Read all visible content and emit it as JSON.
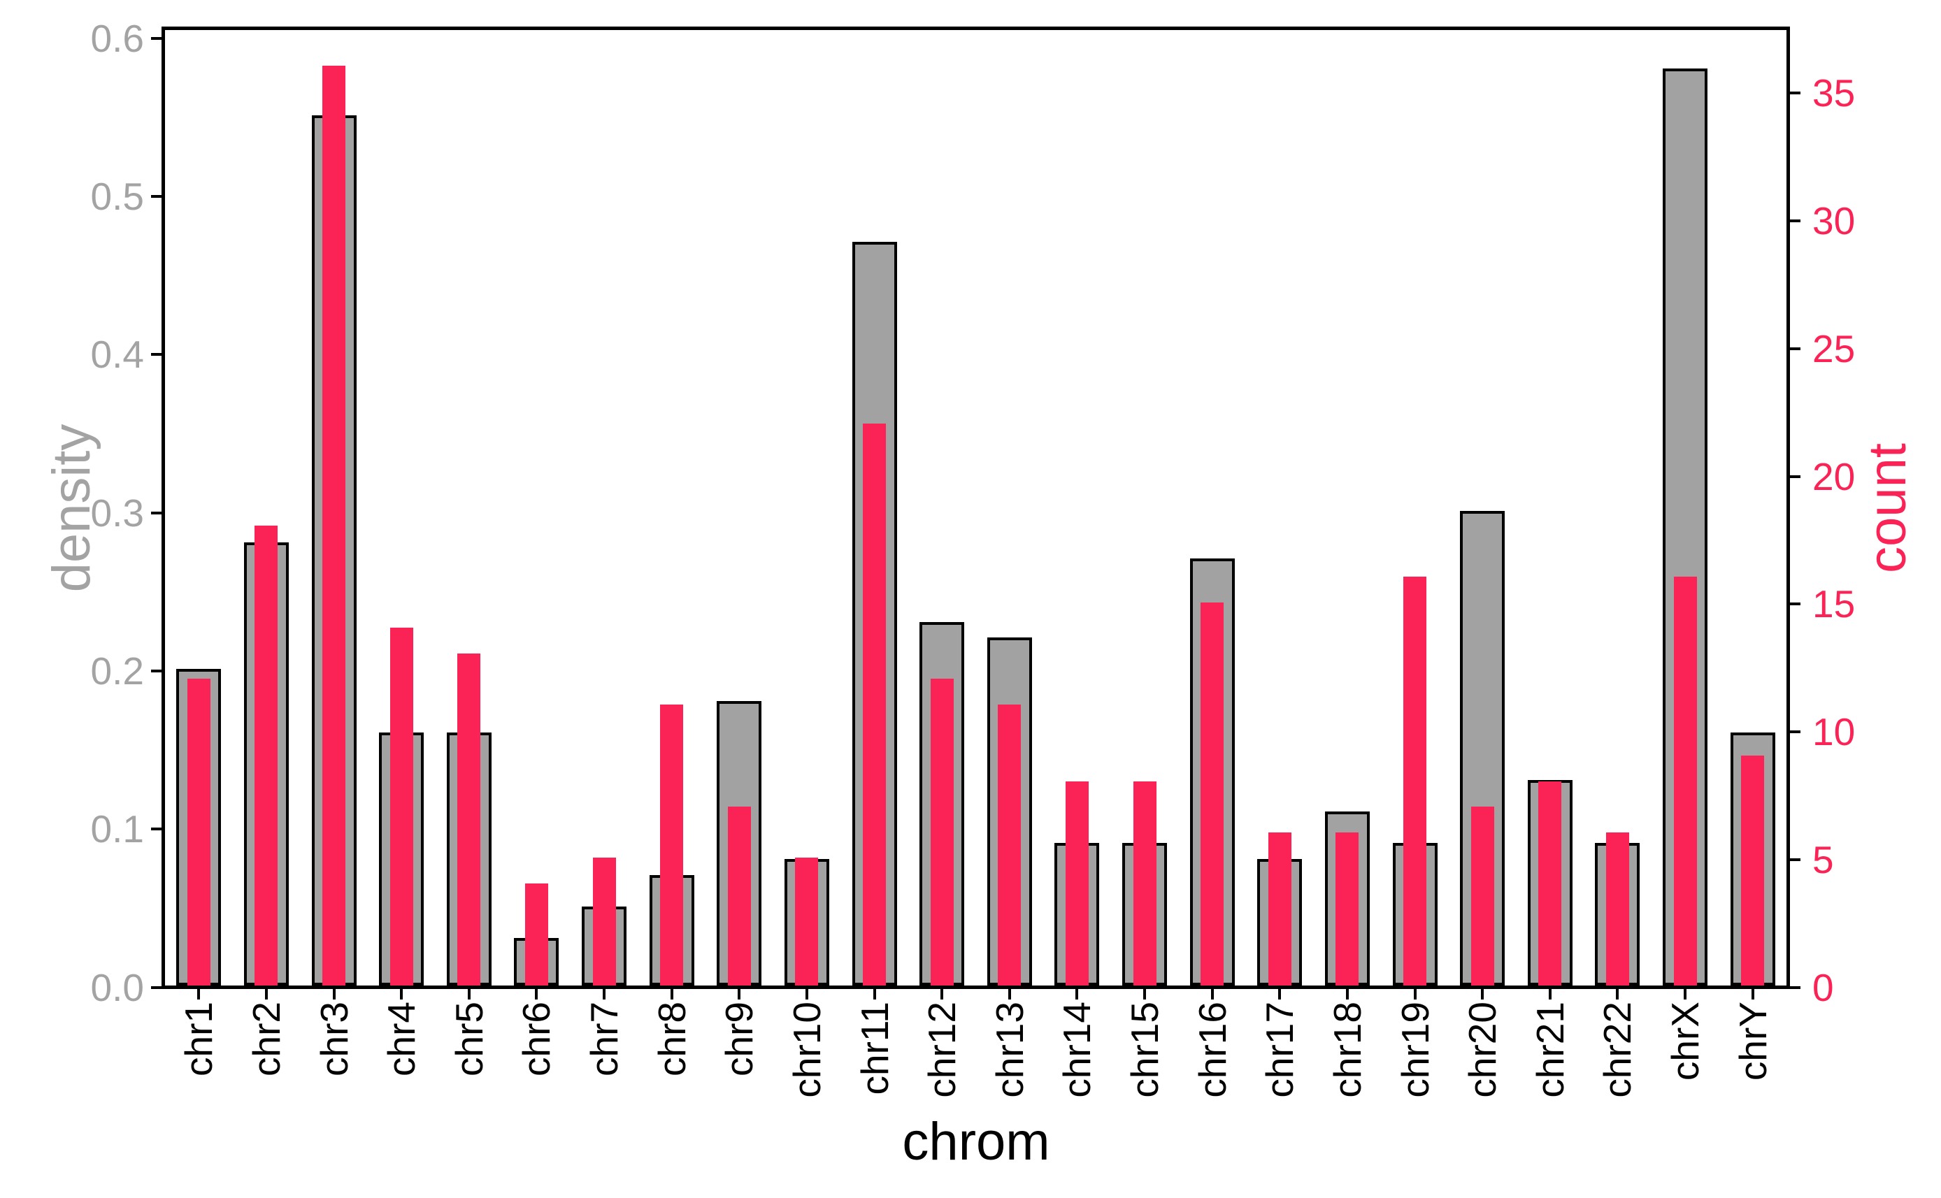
{
  "chart_data": {
    "type": "bar",
    "title": "",
    "xlabel": "chrom",
    "ylabel_left": "density",
    "ylabel_right": "count",
    "categories": [
      "chr1",
      "chr2",
      "chr3",
      "chr4",
      "chr5",
      "chr6",
      "chr7",
      "chr8",
      "chr9",
      "chr10",
      "chr11",
      "chr12",
      "chr13",
      "chr14",
      "chr15",
      "chr16",
      "chr17",
      "chr18",
      "chr19",
      "chr20",
      "chr21",
      "chr22",
      "chrX",
      "chrY"
    ],
    "series": [
      {
        "name": "density",
        "axis": "left",
        "style": "wide-gray-bar",
        "color": "#a2a2a2",
        "values": [
          0.2,
          0.28,
          0.55,
          0.16,
          0.16,
          0.03,
          0.05,
          0.07,
          0.18,
          0.08,
          0.47,
          0.23,
          0.22,
          0.09,
          0.09,
          0.27,
          0.08,
          0.11,
          0.09,
          0.3,
          0.13,
          0.09,
          0.58,
          0.16
        ]
      },
      {
        "name": "count",
        "axis": "right",
        "style": "thin-pink-bar",
        "color": "#fb2355",
        "values": [
          12,
          18,
          36,
          14,
          13,
          4,
          5,
          11,
          7,
          5,
          22,
          12,
          11,
          8,
          8,
          15,
          6,
          6,
          16,
          7,
          8,
          6,
          16,
          9
        ]
      }
    ],
    "left_axis": {
      "tick_labels": [
        "0.0",
        "0.1",
        "0.2",
        "0.3",
        "0.4",
        "0.5",
        "0.6"
      ],
      "tick_values": [
        0.0,
        0.1,
        0.2,
        0.3,
        0.4,
        0.5,
        0.6
      ],
      "ylim": [
        0,
        0.6063
      ]
    },
    "right_axis": {
      "tick_labels": [
        "0",
        "5",
        "10",
        "15",
        "20",
        "25",
        "30",
        "35"
      ],
      "tick_values": [
        0,
        5,
        10,
        15,
        20,
        25,
        30,
        35
      ],
      "ylim": [
        0,
        37.54
      ]
    },
    "grid": false,
    "legend": false,
    "colors": {
      "density_bar_fill": "#a2a2a2",
      "density_text": "#a3a3a3",
      "count_bar_fill": "#fb2355",
      "count_text": "#fb2355",
      "bar_border": "#000000",
      "axis": "#000000"
    }
  }
}
